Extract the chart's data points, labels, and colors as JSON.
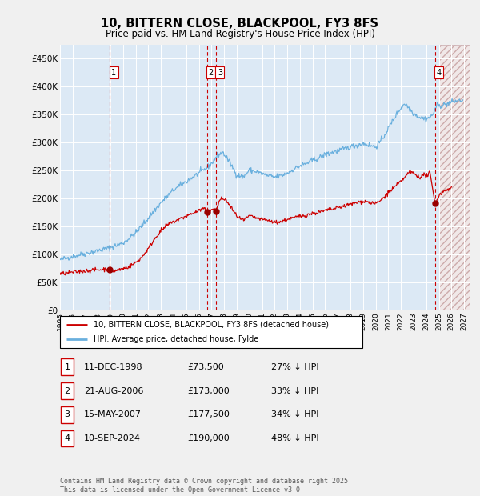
{
  "title": "10, BITTERN CLOSE, BLACKPOOL, FY3 8FS",
  "subtitle": "Price paid vs. HM Land Registry's House Price Index (HPI)",
  "hpi_color": "#6ab0de",
  "price_color": "#cc0000",
  "plot_bg": "#dce9f5",
  "grid_color": "#ffffff",
  "fig_bg": "#f0f0f0",
  "ylim": [
    0,
    475000
  ],
  "xlim_start": 1995.0,
  "xlim_end": 2027.5,
  "yticks": [
    0,
    50000,
    100000,
    150000,
    200000,
    250000,
    300000,
    350000,
    400000,
    450000
  ],
  "ytick_labels": [
    "£0",
    "£50K",
    "£100K",
    "£150K",
    "£200K",
    "£250K",
    "£300K",
    "£350K",
    "£400K",
    "£450K"
  ],
  "xtick_years": [
    1995,
    1996,
    1997,
    1998,
    1999,
    2000,
    2001,
    2002,
    2003,
    2004,
    2005,
    2006,
    2007,
    2008,
    2009,
    2010,
    2011,
    2012,
    2013,
    2014,
    2015,
    2016,
    2017,
    2018,
    2019,
    2020,
    2021,
    2022,
    2023,
    2024,
    2025,
    2026,
    2027
  ],
  "transactions": [
    {
      "num": 1,
      "date": "11-DEC-1998",
      "year": 1998.95,
      "price": 73500,
      "pct": "27%",
      "dir": "↓"
    },
    {
      "num": 2,
      "date": "21-AUG-2006",
      "year": 2006.64,
      "price": 173000,
      "pct": "33%",
      "dir": "↓"
    },
    {
      "num": 3,
      "date": "15-MAY-2007",
      "year": 2007.37,
      "price": 177500,
      "pct": "34%",
      "dir": "↓"
    },
    {
      "num": 4,
      "date": "10-SEP-2024",
      "year": 2024.69,
      "price": 190000,
      "pct": "48%",
      "dir": "↓"
    }
  ],
  "legend_label_price": "10, BITTERN CLOSE, BLACKPOOL, FY3 8FS (detached house)",
  "legend_label_hpi": "HPI: Average price, detached house, Fylde",
  "footer": "Contains HM Land Registry data © Crown copyright and database right 2025.\nThis data is licensed under the Open Government Licence v3.0.",
  "vline_color": "#cc0000",
  "hatch_start": 2025.0,
  "dot_color": "#990000"
}
